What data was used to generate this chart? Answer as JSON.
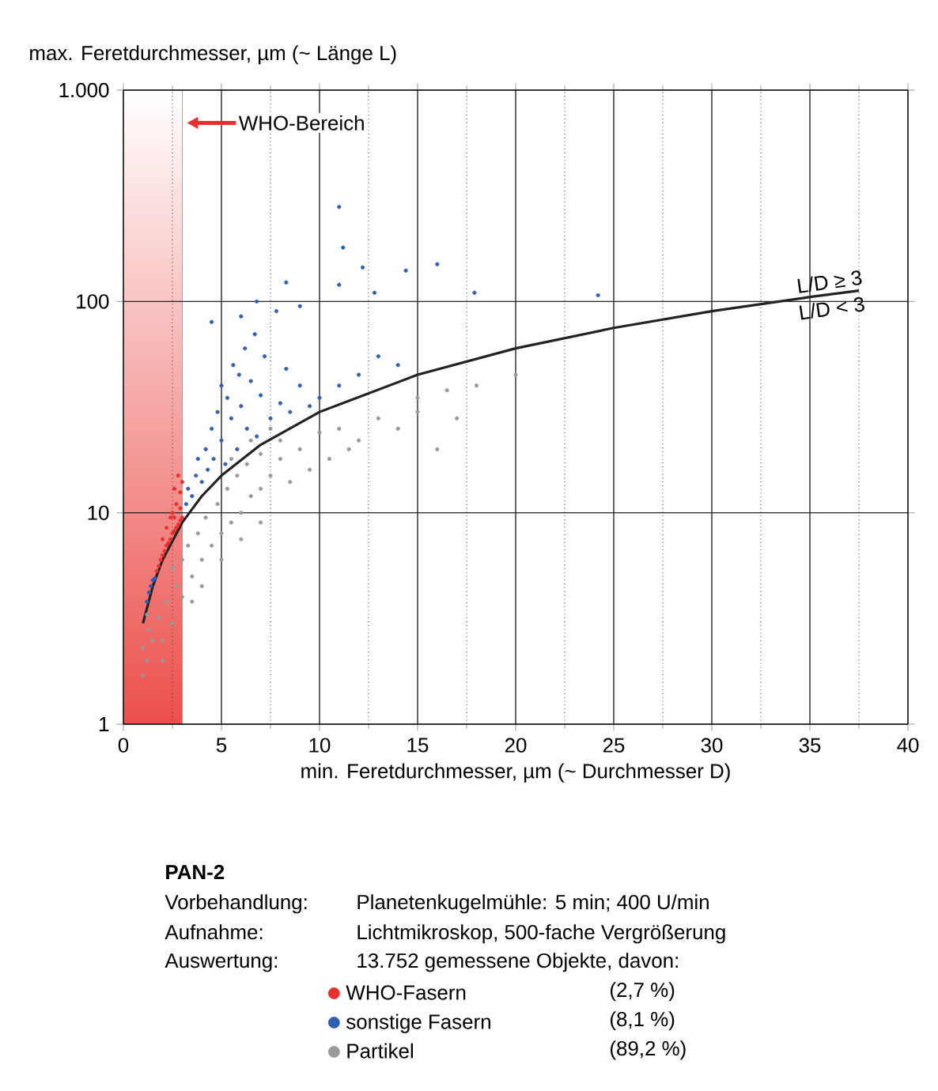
{
  "chart_data": {
    "type": "scatter",
    "title": "PAN-2",
    "xlabel": "min. Feretdurchmesser, µm (~ Durchmesser D)",
    "ylabel": "max. Feretdurchmesser, µm (~ Länge L)",
    "xlim": [
      0,
      40
    ],
    "xticks": [
      0,
      5,
      10,
      15,
      20,
      25,
      30,
      35,
      40
    ],
    "ylim": [
      1,
      1000
    ],
    "yticks": [
      1,
      10,
      100,
      {
        "value": 1000,
        "label": "1.000"
      }
    ],
    "log": "y",
    "grid": true,
    "legend": "bottom",
    "bands": [
      {
        "axis": "x",
        "from": 0,
        "to": 3,
        "color": "#e8302c"
      }
    ],
    "series": [
      {
        "name": "WHO-Fasern",
        "color": "#e8302c",
        "x": [
          1.7,
          1.8,
          1.9,
          2,
          2.1,
          2.2,
          2.3,
          2.4,
          2.5,
          2.6,
          2.7,
          2.8,
          2.9,
          3,
          2.5,
          2.7,
          2.9,
          3,
          2.6,
          2.8,
          2.2,
          2.4,
          2,
          2.6,
          2.9
        ],
        "values": [
          5.3,
          5.6,
          6,
          6.3,
          6.6,
          7,
          7.2,
          7.5,
          8,
          8.2,
          8.5,
          8.8,
          9.2,
          9.5,
          10,
          11,
          12.5,
          14,
          13,
          15,
          8.5,
          9.5,
          7.5,
          9.5,
          10.5
        ]
      },
      {
        "name": "sonstige Fasern",
        "color": "#2f5fb0",
        "x": [
          1.3,
          1.4,
          1.5,
          1.2,
          1.6,
          3.2,
          3.3,
          3.5,
          3.7,
          3.8,
          4,
          4.2,
          4.3,
          4.5,
          4.6,
          4.8,
          5,
          5,
          5.2,
          5.3,
          5.5,
          5.6,
          5.8,
          5.9,
          6,
          6.2,
          6.3,
          6.5,
          6.7,
          6.8,
          7,
          7.2,
          7.5,
          7.8,
          8,
          8.3,
          8.5,
          9,
          9.5,
          10,
          11,
          12,
          13,
          14,
          4.5,
          6,
          11,
          11.2,
          12.2,
          14.4,
          16,
          17.9,
          24.2,
          8.3,
          11,
          6.8,
          9,
          12.8
        ],
        "values": [
          4.2,
          4.5,
          4.8,
          3.8,
          4.9,
          11,
          13,
          12,
          15,
          18,
          14,
          20,
          16,
          25,
          18,
          30,
          22,
          40,
          17,
          35,
          28,
          50,
          20,
          45,
          32,
          60,
          25,
          42,
          70,
          23,
          36,
          55,
          28,
          90,
          33,
          48,
          30,
          40,
          32,
          35,
          40,
          45,
          55,
          50,
          80,
          85,
          280,
          180,
          145,
          140,
          150,
          110,
          107,
          123,
          120,
          100,
          95,
          110
        ]
      },
      {
        "name": "Partikel",
        "color": "#999999",
        "x": [
          1,
          1.2,
          1,
          1.5,
          1.3,
          2,
          2.5,
          1.8,
          1.2,
          2.2,
          3,
          2.7,
          2.5,
          3.5,
          3,
          3.3,
          4,
          3.8,
          4.5,
          4.2,
          5,
          4.8,
          5.5,
          5.3,
          6,
          5.8,
          6.5,
          6.3,
          7,
          7,
          7.5,
          8,
          8.5,
          8,
          9,
          9.5,
          10,
          10.5,
          11,
          11.5,
          12,
          13,
          14,
          15,
          16,
          17,
          4,
          3.5,
          2,
          5,
          6,
          7,
          5.5,
          6.5,
          7.5,
          16.5,
          18,
          15,
          20
        ],
        "values": [
          1.7,
          2,
          2.3,
          2.5,
          2.8,
          2.5,
          3,
          3.2,
          3.3,
          3.8,
          4,
          4.5,
          5.5,
          5,
          6,
          7,
          6,
          8,
          7,
          9.5,
          8,
          11,
          9,
          13,
          10,
          15,
          12,
          17,
          13,
          19,
          15,
          18,
          14,
          22,
          20,
          16,
          24,
          18,
          25,
          20,
          22,
          28,
          25,
          30,
          20,
          28,
          4.5,
          3.8,
          2,
          6,
          7.5,
          9,
          18,
          22,
          25,
          38,
          40,
          35,
          45
        ]
      },
      {
        "type": "line",
        "color": "#222222",
        "x": [
          1,
          1.5,
          2,
          3,
          4,
          5,
          7,
          10,
          15,
          20,
          25,
          30,
          35,
          37.5
        ],
        "values": [
          3,
          4.5,
          6,
          9,
          12,
          15,
          21,
          30,
          45,
          60,
          75,
          90,
          105,
          112.5
        ]
      }
    ],
    "annotations": [
      {
        "text": "WHO-Bereich",
        "x": 3,
        "y": 700
      },
      "L/D ≥ 3",
      "L/D < 3",
      "Vorbehandlung:",
      "Planetenkugelmühle: 5 min; 400 U/min",
      "Aufnahme:",
      "Lichtmikroskop, 500-fache Vergrößerung",
      "Auswertung:",
      "13.752 gemessene Objekte, davon:",
      "(2,7 %)",
      "(8,1 %)",
      "(89,2 %)"
    ]
  }
}
